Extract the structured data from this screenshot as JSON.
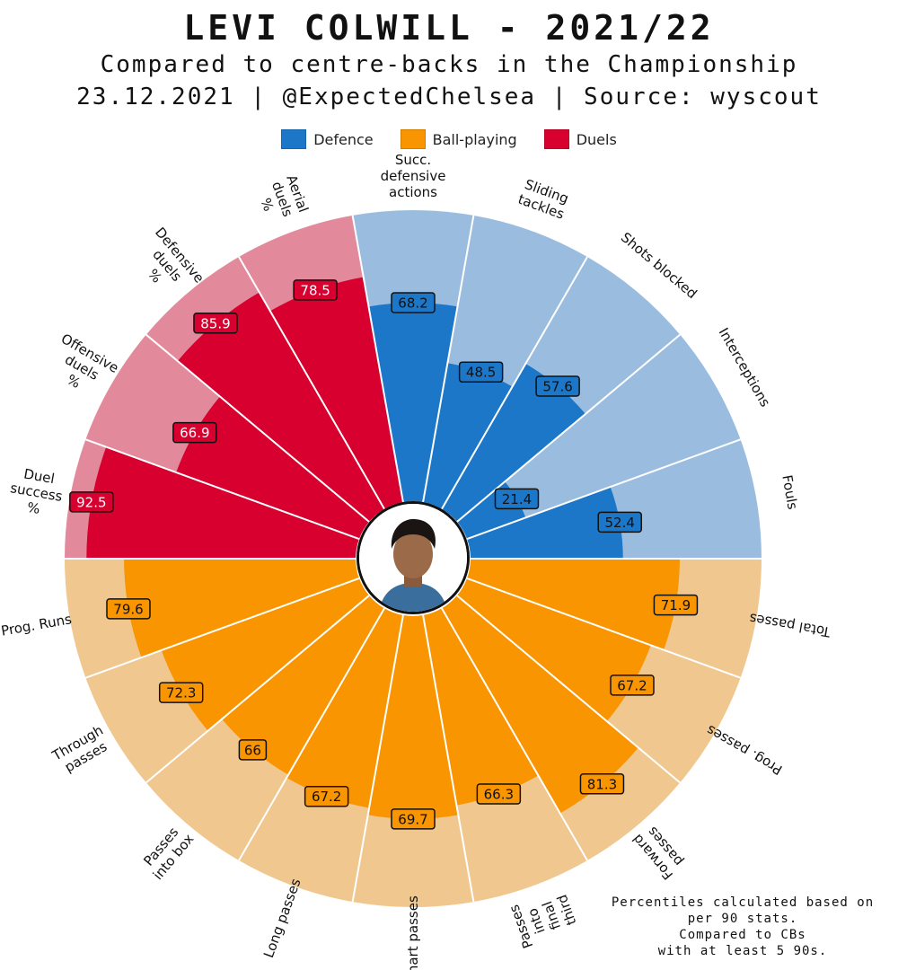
{
  "header": {
    "title": "LEVI COLWILL - 2021/22",
    "subtitle": "Compared to centre-backs in the Championship",
    "credits": "23.12.2021 | @ExpectedChelsea | Source: wyscout"
  },
  "legend": [
    {
      "label": "Defence",
      "color": "#1c77c9"
    },
    {
      "label": "Ball-playing",
      "color": "#f99500"
    },
    {
      "label": "Duels",
      "color": "#d7002f"
    }
  ],
  "colors": {
    "defence_bg": "#9abddf",
    "ballplaying_bg": "#f0c78f",
    "duels_bg": "#e28a9b"
  },
  "footnote": [
    "Percentiles calculated based on",
    "per 90 stats.",
    "Compared to CBs",
    "with at least 5 90s."
  ],
  "chart_data": {
    "type": "polar-bar",
    "unit": "percentile",
    "range": [
      0,
      100
    ],
    "series": [
      {
        "name": "Defence",
        "metrics": [
          {
            "label": "Fouls",
            "value": 52.4
          },
          {
            "label": "Interceptions",
            "value": 21.4
          },
          {
            "label": "Shots blocked",
            "value": 57.6
          },
          {
            "label": "Sliding tackles",
            "value": 48.5
          },
          {
            "label": "Succ. defensive actions",
            "value": 68.2
          }
        ]
      },
      {
        "name": "Duels",
        "metrics": [
          {
            "label": "Aerial duels %",
            "value": 78.5
          },
          {
            "label": "Defensive duels %",
            "value": 85.9
          },
          {
            "label": "Offensive duels %",
            "value": 66.9
          },
          {
            "label": "Duel success %",
            "value": 92.5
          }
        ]
      },
      {
        "name": "Ball-playing",
        "metrics": [
          {
            "label": "Prog. Runs",
            "value": 79.6
          },
          {
            "label": "Through passes",
            "value": 72.3
          },
          {
            "label": "Passes into box",
            "value": 66
          },
          {
            "label": "Long passes",
            "value": 67.2
          },
          {
            "label": "Smart passes",
            "value": 69.7
          },
          {
            "label": "Passes into final third",
            "value": 66.3
          },
          {
            "label": "Forward passes",
            "value": 81.3
          },
          {
            "label": "Prog. passes",
            "value": 67.2
          },
          {
            "label": "Total passes",
            "value": 71.9
          }
        ]
      }
    ]
  }
}
